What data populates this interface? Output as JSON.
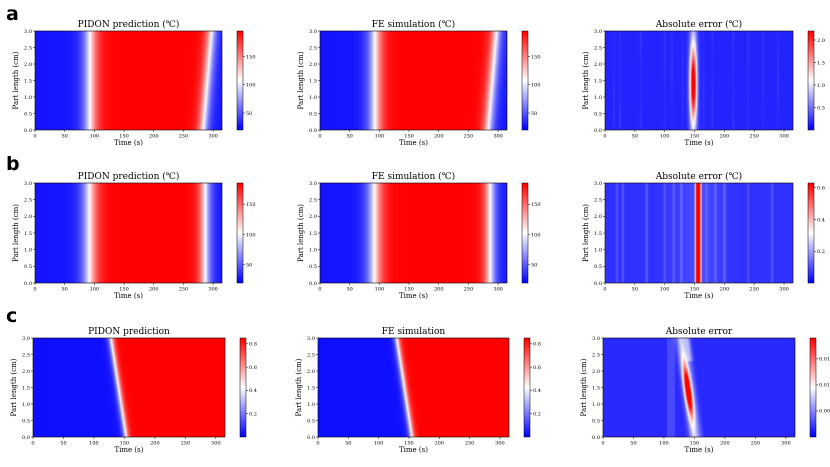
{
  "colormap": [
    "#0000ff",
    "#ffffff",
    "#ff0000"
  ],
  "rows": [
    {
      "letter": "a"
    },
    {
      "letter": "b"
    },
    {
      "letter": "c"
    }
  ],
  "chart_data": [
    {
      "type": "heatmap",
      "row": "a",
      "title": "PIDON prediction (℃)",
      "xlabel": "Time (s)",
      "ylabel": "Part length (cm)",
      "xlim": [
        0,
        315
      ],
      "ylim": [
        0,
        3
      ],
      "xticks": [
        "0",
        "50",
        "100",
        "150",
        "200",
        "250",
        "300"
      ],
      "yticks": [
        "0.0",
        "0.5",
        "1.0",
        "1.5",
        "2.0",
        "2.5",
        "3.0"
      ],
      "colorbar_range": [
        20,
        195
      ],
      "colorbar_ticks": [
        "50",
        "100",
        "150"
      ],
      "field": {
        "kind": "pulse",
        "rise_center": 93,
        "rise_width": 30,
        "fall_start": 268,
        "fall_end": 308,
        "skew": 14
      }
    },
    {
      "type": "heatmap",
      "row": "a",
      "title": "FE simulation (℃)",
      "xlabel": "Time (s)",
      "ylabel": "Part length (cm)",
      "xlim": [
        0,
        315
      ],
      "ylim": [
        0,
        3
      ],
      "xticks": [
        "0",
        "50",
        "100",
        "150",
        "200",
        "250",
        "300"
      ],
      "yticks": [
        "0.0",
        "0.5",
        "1.0",
        "1.5",
        "2.0",
        "2.5",
        "3.0"
      ],
      "colorbar_range": [
        20,
        195
      ],
      "colorbar_ticks": [
        "50",
        "100",
        "150"
      ],
      "field": {
        "kind": "pulse",
        "rise_center": 93,
        "rise_width": 30,
        "fall_start": 268,
        "fall_end": 308,
        "skew": 14
      }
    },
    {
      "type": "heatmap",
      "row": "a",
      "title": "Absolute error (℃)",
      "xlabel": "Time (s)",
      "ylabel": "Part length (cm)",
      "xlim": [
        0,
        315
      ],
      "ylim": [
        0,
        3
      ],
      "xticks": [
        "0",
        "50",
        "100",
        "150",
        "200",
        "250",
        "300"
      ],
      "yticks": [
        "0.0",
        "0.5",
        "1.0",
        "1.5",
        "2.0",
        "2.5",
        "3.0"
      ],
      "colorbar_range": [
        0,
        2.2
      ],
      "colorbar_ticks": [
        "0.5",
        "1.0",
        "1.5",
        "2.0"
      ],
      "field": {
        "kind": "error_blob",
        "center_t": 148,
        "center_y": 1.4,
        "sigma_t": 4,
        "sigma_y": 0.8,
        "peak": 2.2,
        "base": 0.15,
        "stripes": [
          15,
          25,
          60,
          100,
          112,
          130,
          165,
          180,
          215,
          240,
          265,
          290
        ]
      }
    },
    {
      "type": "heatmap",
      "row": "b",
      "title": "PIDON prediction (℃)",
      "xlabel": "Time (s)",
      "ylabel": "Part length (cm)",
      "xlim": [
        0,
        315
      ],
      "ylim": [
        0,
        3
      ],
      "xticks": [
        "0",
        "50",
        "100",
        "150",
        "200",
        "250",
        "300"
      ],
      "yticks": [
        "0.0",
        "0.5",
        "1.0",
        "1.5",
        "2.0",
        "2.5",
        "3.0"
      ],
      "colorbar_range": [
        20,
        185
      ],
      "colorbar_ticks": [
        "50",
        "100",
        "150"
      ],
      "field": {
        "kind": "pulse",
        "rise_center": 92,
        "rise_width": 32,
        "fall_start": 262,
        "fall_end": 306,
        "skew": 0
      }
    },
    {
      "type": "heatmap",
      "row": "b",
      "title": "FE simulation (℃)",
      "xlabel": "Time (s)",
      "ylabel": "Part length (cm)",
      "xlim": [
        0,
        315
      ],
      "ylim": [
        0,
        3
      ],
      "xticks": [
        "0",
        "50",
        "100",
        "150",
        "200",
        "250",
        "300"
      ],
      "yticks": [
        "0.0",
        "0.5",
        "1.0",
        "1.5",
        "2.0",
        "2.5",
        "3.0"
      ],
      "colorbar_range": [
        20,
        185
      ],
      "colorbar_ticks": [
        "50",
        "100",
        "150"
      ],
      "field": {
        "kind": "pulse",
        "rise_center": 92,
        "rise_width": 32,
        "fall_start": 262,
        "fall_end": 306,
        "skew": 0
      }
    },
    {
      "type": "heatmap",
      "row": "b",
      "title": "Absolute error (℃)",
      "xlabel": "Time (s)",
      "ylabel": "Part length (cm)",
      "xlim": [
        0,
        315
      ],
      "ylim": [
        0,
        3
      ],
      "xticks": [
        "0",
        "50",
        "100",
        "150",
        "200",
        "250",
        "300"
      ],
      "yticks": [
        "0.0",
        "0.5",
        "1.0",
        "1.5",
        "2.0",
        "2.5",
        "3.0"
      ],
      "colorbar_range": [
        0,
        0.63
      ],
      "colorbar_ticks": [
        "0.2",
        "0.4",
        "0.6"
      ],
      "field": {
        "kind": "error_band",
        "center_t": 156,
        "half_width": 5,
        "peak": 0.63,
        "base": 0.06,
        "stripes": [
          20,
          30,
          70,
          100,
          115,
          128,
          170,
          185,
          200,
          240,
          280
        ]
      }
    },
    {
      "type": "heatmap",
      "row": "c",
      "title": "PIDON prediction",
      "xlabel": "Time (s)",
      "ylabel": "Part length (cm)",
      "xlim": [
        0,
        315
      ],
      "ylim": [
        0,
        3
      ],
      "xticks": [
        "0",
        "50",
        "100",
        "150",
        "200",
        "250",
        "300"
      ],
      "yticks": [
        "0.0",
        "0.5",
        "1.0",
        "1.5",
        "2.0",
        "2.5",
        "3.0"
      ],
      "colorbar_range": [
        0,
        0.85
      ],
      "colorbar_ticks": [
        "0.2",
        "0.4",
        "0.6",
        "0.8"
      ],
      "field": {
        "kind": "front",
        "front_bottom": 153,
        "front_top": 128,
        "width": 3
      }
    },
    {
      "type": "heatmap",
      "row": "c",
      "title": "FE simulation",
      "xlabel": "Time (s)",
      "ylabel": "Part length (cm)",
      "xlim": [
        0,
        315
      ],
      "ylim": [
        0,
        3
      ],
      "xticks": [
        "0",
        "50",
        "100",
        "150",
        "200",
        "250",
        "300"
      ],
      "yticks": [
        "0.0",
        "0.5",
        "1.0",
        "1.5",
        "2.0",
        "2.5",
        "3.0"
      ],
      "colorbar_range": [
        0,
        0.85
      ],
      "colorbar_ticks": [
        "0.2",
        "0.4",
        "0.6",
        "0.8"
      ],
      "field": {
        "kind": "front",
        "front_bottom": 155,
        "front_top": 130,
        "width": 3
      }
    },
    {
      "type": "heatmap",
      "row": "c",
      "title": "Absolute error",
      "xlabel": "Time (s)",
      "ylabel": "Part length (cm)",
      "xlim": [
        0,
        315
      ],
      "ylim": [
        0,
        3
      ],
      "xticks": [
        "0",
        "50",
        "100",
        "150",
        "200",
        "250",
        "300"
      ],
      "yticks": [
        "0.0",
        "0.5",
        "1.0",
        "1.5",
        "2.0",
        "2.5",
        "3.0"
      ],
      "colorbar_range": [
        0,
        0.019
      ],
      "colorbar_ticks": [
        "0.005",
        "0.010",
        "0.015"
      ],
      "field": {
        "kind": "error_front",
        "center_bottom": 150,
        "center_top": 128,
        "blob_y": 1.4,
        "peak": 0.019,
        "base": 0.0015
      }
    }
  ]
}
